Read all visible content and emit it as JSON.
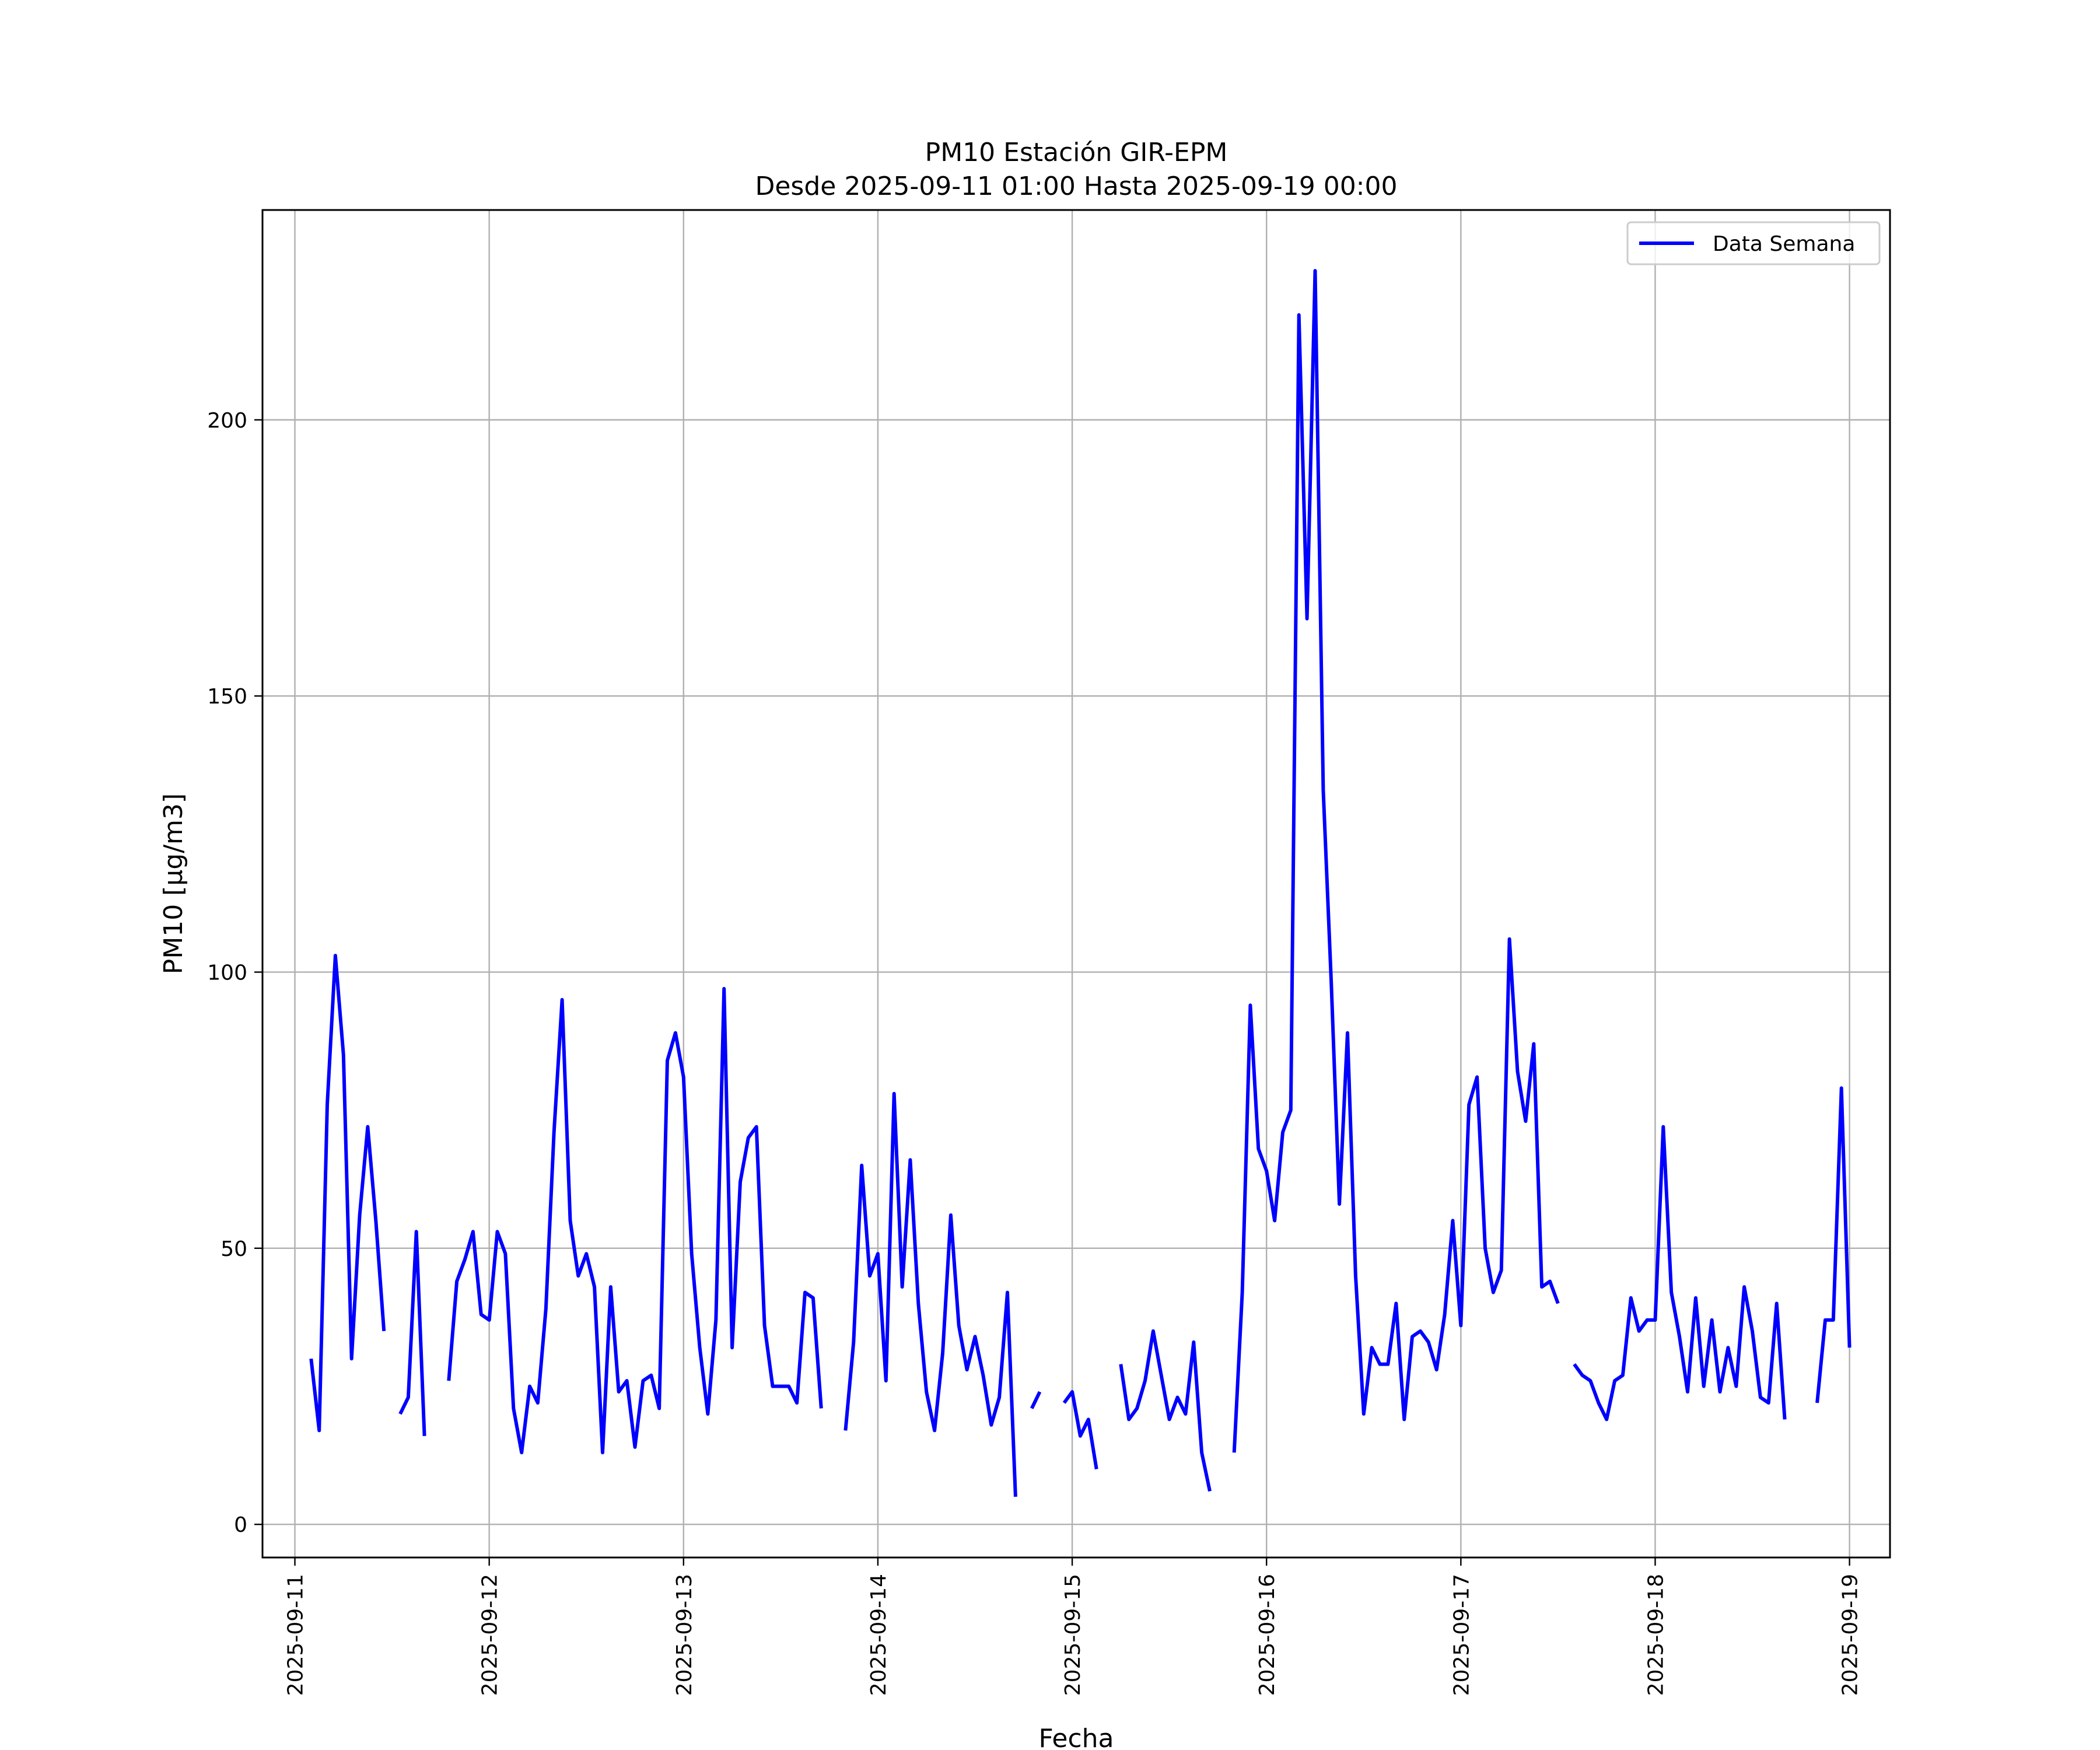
{
  "chart_data": {
    "type": "line",
    "title": "PM10 Estación GIR-EPM",
    "subtitle": "Desde 2025-09-11 01:00 Hasta 2025-09-19 00:00",
    "xlabel": "Fecha",
    "ylabel": "PM10 [μg/m3]",
    "xlim": [
      "2025-09-10 20:00",
      "2025-09-19 05:00"
    ],
    "ylim": [
      -6,
      238
    ],
    "x_ticks": [
      "2025-09-11",
      "2025-09-12",
      "2025-09-13",
      "2025-09-14",
      "2025-09-15",
      "2025-09-16",
      "2025-09-17",
      "2025-09-18",
      "2025-09-19"
    ],
    "y_ticks": [
      0,
      50,
      100,
      150,
      200
    ],
    "grid": true,
    "legend_position": "top-right",
    "line_color": "#0000ff",
    "series": [
      {
        "name": "Data Semana",
        "color": "#0000ff",
        "points": [
          [
            "2025-09-11 02:00",
            30
          ],
          [
            "2025-09-11 03:00",
            17
          ],
          [
            "2025-09-11 04:00",
            76
          ],
          [
            "2025-09-11 05:00",
            103
          ],
          [
            "2025-09-11 06:00",
            85
          ],
          [
            "2025-09-11 07:00",
            30
          ],
          [
            "2025-09-11 08:00",
            56
          ],
          [
            "2025-09-11 09:00",
            72
          ],
          [
            "2025-09-11 10:00",
            55
          ],
          [
            "2025-09-11 11:00",
            35
          ],
          [
            "2025-09-11 13:00",
            20
          ],
          [
            "2025-09-11 14:00",
            23
          ],
          [
            "2025-09-11 15:00",
            53
          ],
          [
            "2025-09-11 16:00",
            16
          ],
          [
            "2025-09-11 19:00",
            26
          ],
          [
            "2025-09-11 20:00",
            44
          ],
          [
            "2025-09-11 21:00",
            48
          ],
          [
            "2025-09-11 22:00",
            53
          ],
          [
            "2025-09-11 23:00",
            38
          ],
          [
            "2025-09-12 00:00",
            37
          ],
          [
            "2025-09-12 01:00",
            53
          ],
          [
            "2025-09-12 02:00",
            49
          ],
          [
            "2025-09-12 03:00",
            21
          ],
          [
            "2025-09-12 04:00",
            13
          ],
          [
            "2025-09-12 05:00",
            25
          ],
          [
            "2025-09-12 06:00",
            22
          ],
          [
            "2025-09-12 07:00",
            39
          ],
          [
            "2025-09-12 08:00",
            71
          ],
          [
            "2025-09-12 09:00",
            95
          ],
          [
            "2025-09-12 10:00",
            55
          ],
          [
            "2025-09-12 11:00",
            45
          ],
          [
            "2025-09-12 12:00",
            49
          ],
          [
            "2025-09-12 13:00",
            43
          ],
          [
            "2025-09-12 14:00",
            13
          ],
          [
            "2025-09-12 15:00",
            43
          ],
          [
            "2025-09-12 16:00",
            24
          ],
          [
            "2025-09-12 17:00",
            26
          ],
          [
            "2025-09-12 18:00",
            14
          ],
          [
            "2025-09-12 19:00",
            26
          ],
          [
            "2025-09-12 20:00",
            27
          ],
          [
            "2025-09-12 21:00",
            21
          ],
          [
            "2025-09-12 22:00",
            84
          ],
          [
            "2025-09-12 23:00",
            89
          ],
          [
            "2025-09-13 00:00",
            81
          ],
          [
            "2025-09-13 01:00",
            49
          ],
          [
            "2025-09-13 02:00",
            32
          ],
          [
            "2025-09-13 03:00",
            20
          ],
          [
            "2025-09-13 04:00",
            37
          ],
          [
            "2025-09-13 05:00",
            97
          ],
          [
            "2025-09-13 06:00",
            32
          ],
          [
            "2025-09-13 07:00",
            62
          ],
          [
            "2025-09-13 08:00",
            70
          ],
          [
            "2025-09-13 09:00",
            72
          ],
          [
            "2025-09-13 10:00",
            36
          ],
          [
            "2025-09-13 11:00",
            25
          ],
          [
            "2025-09-13 12:00",
            25
          ],
          [
            "2025-09-13 13:00",
            25
          ],
          [
            "2025-09-13 14:00",
            22
          ],
          [
            "2025-09-13 15:00",
            42
          ],
          [
            "2025-09-13 16:00",
            41
          ],
          [
            "2025-09-13 17:00",
            21
          ],
          [
            "2025-09-13 20:00",
            17
          ],
          [
            "2025-09-13 21:00",
            33
          ],
          [
            "2025-09-13 22:00",
            65
          ],
          [
            "2025-09-13 23:00",
            45
          ],
          [
            "2025-09-14 00:00",
            49
          ],
          [
            "2025-09-14 01:00",
            26
          ],
          [
            "2025-09-14 02:00",
            78
          ],
          [
            "2025-09-14 03:00",
            43
          ],
          [
            "2025-09-14 04:00",
            66
          ],
          [
            "2025-09-14 05:00",
            40
          ],
          [
            "2025-09-14 06:00",
            24
          ],
          [
            "2025-09-14 07:00",
            17
          ],
          [
            "2025-09-14 08:00",
            31
          ],
          [
            "2025-09-14 09:00",
            56
          ],
          [
            "2025-09-14 10:00",
            36
          ],
          [
            "2025-09-14 11:00",
            28
          ],
          [
            "2025-09-14 12:00",
            34
          ],
          [
            "2025-09-14 13:00",
            27
          ],
          [
            "2025-09-14 14:00",
            18
          ],
          [
            "2025-09-14 15:00",
            23
          ],
          [
            "2025-09-14 16:00",
            42
          ],
          [
            "2025-09-14 17:00",
            5
          ],
          [
            "2025-09-14 19:00",
            21
          ],
          [
            "2025-09-14 20:00",
            24
          ],
          [
            "2025-09-14 23:00",
            22
          ],
          [
            "2025-09-15 00:00",
            24
          ],
          [
            "2025-09-15 01:00",
            16
          ],
          [
            "2025-09-15 02:00",
            19
          ],
          [
            "2025-09-15 03:00",
            10
          ],
          [
            "2025-09-15 06:00",
            29
          ],
          [
            "2025-09-15 07:00",
            19
          ],
          [
            "2025-09-15 08:00",
            21
          ],
          [
            "2025-09-15 09:00",
            26
          ],
          [
            "2025-09-15 10:00",
            35
          ],
          [
            "2025-09-15 11:00",
            27
          ],
          [
            "2025-09-15 12:00",
            19
          ],
          [
            "2025-09-15 13:00",
            23
          ],
          [
            "2025-09-15 14:00",
            20
          ],
          [
            "2025-09-15 15:00",
            33
          ],
          [
            "2025-09-15 16:00",
            13
          ],
          [
            "2025-09-15 17:00",
            6
          ],
          [
            "2025-09-15 20:00",
            13
          ],
          [
            "2025-09-15 21:00",
            42
          ],
          [
            "2025-09-15 22:00",
            94
          ],
          [
            "2025-09-15 23:00",
            68
          ],
          [
            "2025-09-16 00:00",
            64
          ],
          [
            "2025-09-16 01:00",
            55
          ],
          [
            "2025-09-16 02:00",
            71
          ],
          [
            "2025-09-16 03:00",
            75
          ],
          [
            "2025-09-16 04:00",
            219
          ],
          [
            "2025-09-16 05:00",
            164
          ],
          [
            "2025-09-16 06:00",
            227
          ],
          [
            "2025-09-16 07:00",
            133
          ],
          [
            "2025-09-16 08:00",
            98
          ],
          [
            "2025-09-16 09:00",
            58
          ],
          [
            "2025-09-16 10:00",
            89
          ],
          [
            "2025-09-16 11:00",
            45
          ],
          [
            "2025-09-16 12:00",
            20
          ],
          [
            "2025-09-16 13:00",
            32
          ],
          [
            "2025-09-16 14:00",
            29
          ],
          [
            "2025-09-16 15:00",
            29
          ],
          [
            "2025-09-16 16:00",
            40
          ],
          [
            "2025-09-16 17:00",
            19
          ],
          [
            "2025-09-16 18:00",
            34
          ],
          [
            "2025-09-16 19:00",
            35
          ],
          [
            "2025-09-16 20:00",
            33
          ],
          [
            "2025-09-16 21:00",
            28
          ],
          [
            "2025-09-16 22:00",
            38
          ],
          [
            "2025-09-16 23:00",
            55
          ],
          [
            "2025-09-17 00:00",
            36
          ],
          [
            "2025-09-17 01:00",
            76
          ],
          [
            "2025-09-17 02:00",
            81
          ],
          [
            "2025-09-17 03:00",
            50
          ],
          [
            "2025-09-17 04:00",
            42
          ],
          [
            "2025-09-17 05:00",
            46
          ],
          [
            "2025-09-17 06:00",
            106
          ],
          [
            "2025-09-17 07:00",
            82
          ],
          [
            "2025-09-17 08:00",
            73
          ],
          [
            "2025-09-17 09:00",
            87
          ],
          [
            "2025-09-17 10:00",
            43
          ],
          [
            "2025-09-17 11:00",
            44
          ],
          [
            "2025-09-17 12:00",
            40
          ],
          [
            "2025-09-17 14:00",
            29
          ],
          [
            "2025-09-17 15:00",
            27
          ],
          [
            "2025-09-17 16:00",
            26
          ],
          [
            "2025-09-17 17:00",
            22
          ],
          [
            "2025-09-17 18:00",
            19
          ],
          [
            "2025-09-17 19:00",
            26
          ],
          [
            "2025-09-17 20:00",
            27
          ],
          [
            "2025-09-17 21:00",
            41
          ],
          [
            "2025-09-17 22:00",
            35
          ],
          [
            "2025-09-17 23:00",
            37
          ],
          [
            "2025-09-18 00:00",
            37
          ],
          [
            "2025-09-18 01:00",
            72
          ],
          [
            "2025-09-18 02:00",
            42
          ],
          [
            "2025-09-18 03:00",
            34
          ],
          [
            "2025-09-18 04:00",
            24
          ],
          [
            "2025-09-18 05:00",
            41
          ],
          [
            "2025-09-18 06:00",
            25
          ],
          [
            "2025-09-18 07:00",
            37
          ],
          [
            "2025-09-18 08:00",
            24
          ],
          [
            "2025-09-18 09:00",
            32
          ],
          [
            "2025-09-18 10:00",
            25
          ],
          [
            "2025-09-18 11:00",
            43
          ],
          [
            "2025-09-18 12:00",
            35
          ],
          [
            "2025-09-18 13:00",
            23
          ],
          [
            "2025-09-18 14:00",
            22
          ],
          [
            "2025-09-18 15:00",
            40
          ],
          [
            "2025-09-18 16:00",
            19
          ],
          [
            "2025-09-18 20:00",
            22
          ],
          [
            "2025-09-18 21:00",
            37
          ],
          [
            "2025-09-18 22:00",
            37
          ],
          [
            "2025-09-18 23:00",
            79
          ],
          [
            "2025-09-19 00:00",
            32
          ]
        ]
      }
    ]
  }
}
